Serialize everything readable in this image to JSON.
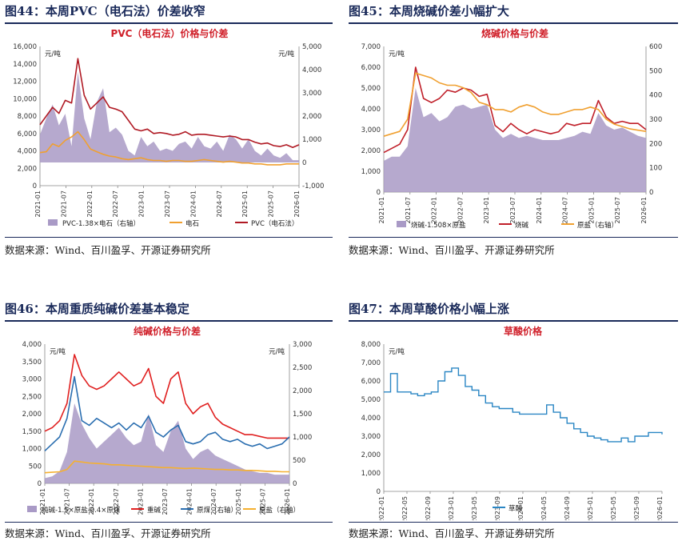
{
  "panels": [
    {
      "fig_title": "图44：本周PVC（电石法）价差收窄",
      "source": "数据来源：Wind、百川盈孚、开源证券研究所",
      "chart_data": {
        "type": "line",
        "title": "PVC（电石法）价格与价差",
        "title_color": "#d0202a",
        "left_unit": "元/吨",
        "right_unit": "元/吨",
        "left_ticks": [
          "0",
          "2,000",
          "4,000",
          "6,000",
          "8,000",
          "10,000",
          "12,000",
          "14,000",
          "16,000"
        ],
        "right_ticks": [
          "-1,000",
          "0",
          "1,000",
          "2,000",
          "3,000",
          "4,000",
          "5,000"
        ],
        "ylim_left": [
          0,
          16000
        ],
        "ylim_right": [
          -1000,
          5000
        ],
        "x_ticks": [
          "2021-01",
          "2021-07",
          "2022-01",
          "2022-07",
          "2023-01",
          "2023-07",
          "2024-01",
          "2024-07",
          "2025-01",
          "2025-07",
          "2026-01"
        ],
        "series": [
          {
            "name": "PVC-1.38×电石（右轴）",
            "kind": "area",
            "axis": "right",
            "color": "#a99ac6",
            "values": [
              1200,
              1900,
              2500,
              1600,
              2100,
              700,
              3900,
              1900,
              1000,
              2600,
              3200,
              1300,
              1500,
              1200,
              500,
              300,
              1100,
              700,
              900,
              500,
              600,
              500,
              800,
              900,
              600,
              1100,
              700,
              600,
              900,
              500,
              1200,
              1000,
              600,
              1000,
              500,
              300,
              600,
              300,
              200,
              400,
              100,
              100
            ]
          },
          {
            "name": "电石",
            "kind": "line",
            "axis": "left",
            "color": "#f0a030",
            "values": [
              3800,
              3900,
              4800,
              4500,
              5200,
              5600,
              6200,
              5300,
              4200,
              3900,
              3600,
              3400,
              3300,
              3100,
              3000,
              3100,
              3200,
              3000,
              2900,
              2900,
              2800,
              2900,
              2900,
              2800,
              2800,
              2900,
              3000,
              2900,
              2800,
              2700,
              2800,
              2700,
              2600,
              2600,
              2500,
              2500,
              2400,
              2400,
              2400,
              2500,
              2500,
              2500
            ]
          },
          {
            "name": "PVC（电石法）",
            "kind": "line",
            "axis": "left",
            "color": "#b01a24",
            "values": [
              7000,
              8000,
              9000,
              8300,
              9800,
              9500,
              14600,
              10400,
              8800,
              9500,
              10200,
              9000,
              8800,
              8500,
              7500,
              6500,
              6300,
              6500,
              6000,
              6100,
              6000,
              5800,
              5900,
              6200,
              5800,
              5900,
              5900,
              5800,
              5700,
              5600,
              5700,
              5600,
              5300,
              5300,
              5000,
              4800,
              4900,
              4600,
              4500,
              4700,
              4400,
              4700
            ]
          }
        ],
        "legend": [
          "PVC-1.38×电石（右轴）",
          "电石",
          "PVC（电石法）"
        ]
      }
    },
    {
      "fig_title": "图45：本周烧碱价差小幅扩大",
      "source": "数据来源：Wind、百川盈孚、开源证券研究所",
      "chart_data": {
        "type": "line",
        "title": "烧碱价格与价差",
        "title_color": "#d0202a",
        "left_unit": "元/吨",
        "left_ticks": [
          "0",
          "1,000",
          "2,000",
          "3,000",
          "4,000",
          "5,000",
          "6,000",
          "7,000"
        ],
        "right_ticks": [
          "0",
          "100",
          "200",
          "300",
          "400",
          "500",
          "600"
        ],
        "ylim_left": [
          0,
          7000
        ],
        "ylim_right": [
          0,
          600
        ],
        "x_ticks": [
          "2021-01",
          "2021-07",
          "2022-01",
          "2022-07",
          "2023-01",
          "2023-07",
          "2024-01",
          "2024-07",
          "2025-01",
          "2025-07",
          "2026-01"
        ],
        "series": [
          {
            "name": "烧碱-1.508×原盐",
            "kind": "area",
            "axis": "left",
            "color": "#a99ac6",
            "values": [
              1500,
              1700,
              1700,
              2200,
              5000,
              3600,
              3800,
              3400,
              3600,
              4100,
              4200,
              4000,
              4100,
              4200,
              3000,
              2600,
              2800,
              2600,
              2700,
              2600,
              2500,
              2500,
              2500,
              2600,
              2700,
              2900,
              2800,
              3800,
              3200,
              3000,
              3100,
              2900,
              2700,
              2600
            ]
          },
          {
            "name": "烧碱",
            "kind": "line",
            "axis": "left",
            "color": "#c0202a",
            "values": [
              1900,
              2100,
              2300,
              3000,
              6000,
              4500,
              4300,
              4500,
              4900,
              4800,
              5000,
              4900,
              4600,
              4700,
              3200,
              2900,
              3300,
              3000,
              2800,
              3000,
              2900,
              2800,
              2900,
              3300,
              3200,
              3300,
              3300,
              4400,
              3600,
              3300,
              3400,
              3300,
              3300,
              3000
            ]
          },
          {
            "name": "原盐",
            "kind": "line",
            "axis": "right",
            "color": "#f0a030",
            "values": [
              230,
              240,
              250,
              300,
              490,
              480,
              470,
              450,
              440,
              440,
              430,
              410,
              370,
              360,
              340,
              340,
              330,
              350,
              360,
              350,
              330,
              320,
              320,
              330,
              340,
              340,
              350,
              340,
              300,
              280,
              270,
              260,
              255,
              250
            ]
          }
        ],
        "legend": [
          "烧碱-1.508×原盐",
          "烧碱",
          "原盐（右轴）"
        ]
      }
    },
    {
      "fig_title": "图46：本周重质纯碱价差基本稳定",
      "source": "数据来源：Wind、百川盈孚、开源证券研究所",
      "chart_data": {
        "type": "line",
        "title": "纯碱价格与价差",
        "title_color": "#d0202a",
        "left_unit": "元/吨",
        "right_unit": "元/吨",
        "left_ticks": [
          "0",
          "500",
          "1,000",
          "1,500",
          "2,000",
          "2,500",
          "3,000",
          "3,500",
          "4,000"
        ],
        "right_ticks": [
          "0",
          "500",
          "1,000",
          "1,500",
          "2,000",
          "2,500",
          "3,000"
        ],
        "ylim_left": [
          0,
          4000
        ],
        "ylim_right": [
          0,
          3000
        ],
        "x_ticks": [
          "2021-01",
          "2021-07",
          "2022-01",
          "2022-07",
          "2023-01",
          "2023-07",
          "2024-01",
          "2024-07",
          "2025-01",
          "2025-07",
          "2026-01"
        ],
        "series": [
          {
            "name": "纯碱-1.5×原盐-0.4×原煤",
            "kind": "area",
            "axis": "left",
            "color": "#a99ac6",
            "values": [
              150,
              200,
              350,
              900,
              2300,
              1700,
              1300,
              1000,
              1200,
              1400,
              1600,
              1300,
              1100,
              1200,
              2000,
              1100,
              900,
              1500,
              1800,
              1000,
              700,
              900,
              1000,
              800,
              700,
              600,
              500,
              400,
              350,
              300,
              300,
              250,
              250,
              250
            ]
          },
          {
            "name": "重碱",
            "kind": "line",
            "axis": "left",
            "color": "#e02020",
            "values": [
              1500,
              1600,
              1800,
              2300,
              3700,
              3100,
              2800,
              2700,
              2800,
              3000,
              3200,
              3000,
              2800,
              2900,
              3300,
              2500,
              2300,
              3000,
              3200,
              2300,
              2000,
              2200,
              2300,
              1900,
              1700,
              1600,
              1500,
              1400,
              1400,
              1350,
              1300,
              1300,
              1300,
              1300
            ]
          },
          {
            "name": "原煤（右轴）",
            "kind": "line",
            "axis": "right",
            "color": "#2a6eb0",
            "values": [
              700,
              850,
              1000,
              1400,
              2300,
              1350,
              1250,
              1400,
              1300,
              1200,
              1300,
              1150,
              1300,
              1200,
              1450,
              1100,
              1000,
              1150,
              1250,
              900,
              850,
              900,
              1050,
              1100,
              950,
              900,
              950,
              850,
              800,
              850,
              750,
              800,
              850,
              1000
            ]
          },
          {
            "name": "原盐（右轴）",
            "kind": "line",
            "axis": "right",
            "color": "#f5b030",
            "values": [
              230,
              240,
              250,
              300,
              480,
              460,
              440,
              430,
              420,
              400,
              400,
              390,
              380,
              370,
              360,
              350,
              340,
              340,
              330,
              320,
              330,
              320,
              310,
              300,
              300,
              290,
              290,
              280,
              280,
              270,
              260,
              260,
              250,
              250
            ]
          }
        ],
        "legend": [
          "纯碱-1.5×原盐-0.4×原煤",
          "重碱",
          "原煤（右轴）",
          "原盐（右轴）"
        ]
      }
    },
    {
      "fig_title": "图47：本周草酸价格小幅上涨",
      "source": "数据来源：Wind、百川盈孚、开源证券研究所",
      "chart_data": {
        "type": "line",
        "title": "草酸价格",
        "title_color": "#d0202a",
        "left_unit": "元/吨",
        "left_ticks": [
          "0",
          "1,000",
          "2,000",
          "3,000",
          "4,000",
          "5,000",
          "6,000",
          "7,000",
          "8,000"
        ],
        "ylim_left": [
          0,
          8000
        ],
        "x_ticks": [
          "2022-01",
          "2022-05",
          "2022-09",
          "2023-01",
          "2023-05",
          "2023-09",
          "2024-01",
          "2024-05",
          "2024-09",
          "2025-01",
          "2025-05",
          "2025-09",
          "2026-01"
        ],
        "series": [
          {
            "name": "草酸",
            "kind": "step",
            "axis": "left",
            "color": "#2a86c4",
            "values": [
              5400,
              6400,
              5400,
              5400,
              5300,
              5200,
              5300,
              5400,
              6000,
              6500,
              6700,
              6300,
              5700,
              5500,
              5200,
              4800,
              4600,
              4500,
              4500,
              4300,
              4200,
              4200,
              4200,
              4200,
              4700,
              4300,
              4000,
              3700,
              3400,
              3200,
              3000,
              2900,
              2800,
              2700,
              2700,
              2900,
              2700,
              3000,
              3000,
              3200,
              3200,
              3100
            ]
          }
        ],
        "legend": [
          "草酸"
        ]
      }
    }
  ]
}
